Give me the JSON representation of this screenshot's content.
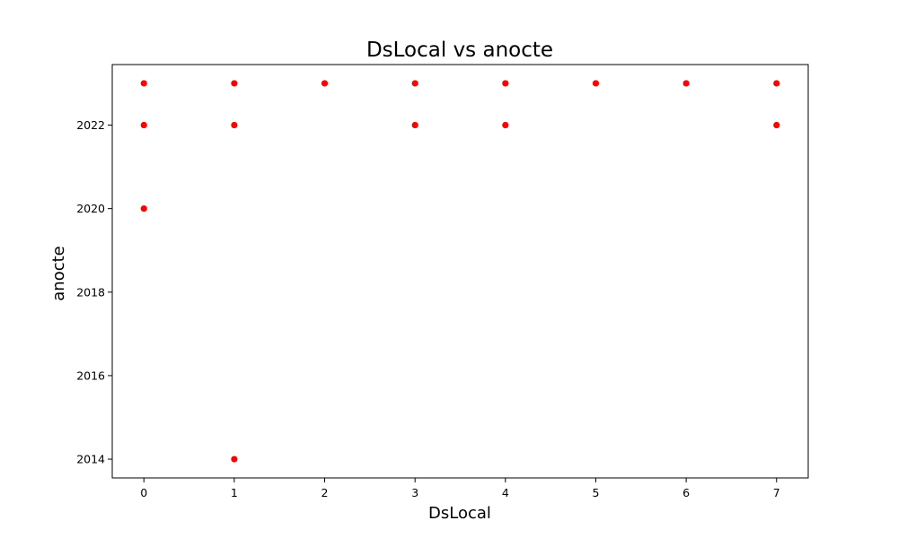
{
  "chart_data": {
    "type": "scatter",
    "title": "DsLocal vs anocte",
    "xlabel": "DsLocal",
    "ylabel": "anocte",
    "xlim": [
      -0.35,
      7.35
    ],
    "ylim": [
      2013.55,
      2023.45
    ],
    "x_ticks": [
      0,
      1,
      2,
      3,
      4,
      5,
      6,
      7
    ],
    "y_ticks": [
      2014,
      2016,
      2018,
      2020,
      2022
    ],
    "grid": false,
    "marker_color": "#ff0000",
    "points": [
      {
        "x": 0,
        "y": 2023
      },
      {
        "x": 0,
        "y": 2022
      },
      {
        "x": 0,
        "y": 2020
      },
      {
        "x": 1,
        "y": 2023
      },
      {
        "x": 1,
        "y": 2022
      },
      {
        "x": 1,
        "y": 2014
      },
      {
        "x": 2,
        "y": 2023
      },
      {
        "x": 3,
        "y": 2023
      },
      {
        "x": 3,
        "y": 2022
      },
      {
        "x": 4,
        "y": 2023
      },
      {
        "x": 4,
        "y": 2022
      },
      {
        "x": 5,
        "y": 2023
      },
      {
        "x": 6,
        "y": 2023
      },
      {
        "x": 7,
        "y": 2023
      },
      {
        "x": 7,
        "y": 2022
      }
    ]
  }
}
